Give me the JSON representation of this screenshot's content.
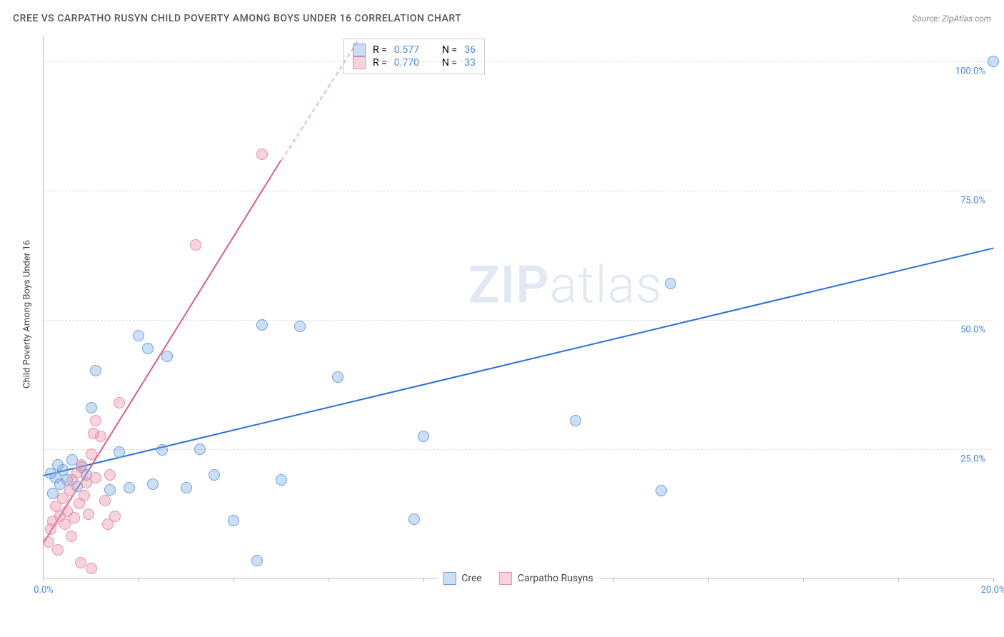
{
  "header": {
    "title": "CREE VS CARPATHO RUSYN CHILD POVERTY AMONG BOYS UNDER 16 CORRELATION CHART",
    "source_prefix": "Source: ",
    "source_name": "ZipAtlas.com"
  },
  "watermark": {
    "zip": "ZIP",
    "atlas": "atlas"
  },
  "chart": {
    "type": "scatter",
    "ylabel": "Child Poverty Among Boys Under 16",
    "xlim": [
      0,
      20
    ],
    "ylim": [
      0,
      105
    ],
    "background_color": "#ffffff",
    "grid_color": "#dddddd",
    "axis_color": "#bbbbbb",
    "tick_label_color": "#4a86e8",
    "y_gridlines": [
      25,
      50,
      75,
      100
    ],
    "y_tick_labels": [
      "25.0%",
      "50.0%",
      "75.0%",
      "100.0%"
    ],
    "x_ticks": [
      0,
      2,
      4,
      6,
      8,
      10,
      12,
      14,
      16,
      18,
      20
    ],
    "x_tick_labels": {
      "0": "0.0%",
      "20": "20.0%"
    },
    "marker_radius": 8,
    "marker_border_width": 1,
    "marker_fill_opacity": 0.35,
    "series": [
      {
        "name": "Cree",
        "color_stroke": "#6da0e0",
        "color_fill": "rgba(109,160,224,0.35)",
        "R": "0.577",
        "N": "36",
        "trend": {
          "x1": 0,
          "y1": 20,
          "x2": 20,
          "y2": 64,
          "width": 2,
          "color": "#2a6fd6"
        },
        "points": [
          [
            0.15,
            20.3
          ],
          [
            0.2,
            16.5
          ],
          [
            0.25,
            19.5
          ],
          [
            0.3,
            22
          ],
          [
            0.35,
            18.2
          ],
          [
            0.4,
            21
          ],
          [
            0.5,
            19
          ],
          [
            0.6,
            23
          ],
          [
            0.7,
            17.8
          ],
          [
            0.8,
            21.5
          ],
          [
            0.9,
            20
          ],
          [
            1.0,
            33
          ],
          [
            1.1,
            40.2
          ],
          [
            1.4,
            17.2
          ],
          [
            1.6,
            24.5
          ],
          [
            1.8,
            17.5
          ],
          [
            2.0,
            47
          ],
          [
            2.2,
            44.5
          ],
          [
            2.3,
            18.2
          ],
          [
            2.5,
            24.8
          ],
          [
            2.6,
            43
          ],
          [
            3.0,
            17.5
          ],
          [
            3.3,
            25
          ],
          [
            3.6,
            20
          ],
          [
            4.0,
            11.2
          ],
          [
            4.5,
            3.5
          ],
          [
            4.6,
            49
          ],
          [
            5.0,
            19
          ],
          [
            5.4,
            48.8
          ],
          [
            6.2,
            39
          ],
          [
            7.8,
            11.5
          ],
          [
            8.0,
            27.5
          ],
          [
            11.2,
            30.5
          ],
          [
            13.0,
            17
          ],
          [
            13.2,
            57
          ],
          [
            20.0,
            100
          ]
        ]
      },
      {
        "name": "Carpatho Rusyns",
        "color_stroke": "#e890a8",
        "color_fill": "rgba(232,144,168,0.4)",
        "R": "0.770",
        "N": "33",
        "trend": {
          "x1": 0,
          "y1": 7,
          "x2": 5.0,
          "y2": 81,
          "width": 2,
          "color": "#e05a84"
        },
        "trend_dash": {
          "x1": 5.0,
          "y1": 81,
          "x2": 6.6,
          "y2": 104,
          "color": "rgba(224,90,132,0.45)"
        },
        "points": [
          [
            0.1,
            7
          ],
          [
            0.15,
            9.5
          ],
          [
            0.2,
            11
          ],
          [
            0.25,
            14
          ],
          [
            0.3,
            5.5
          ],
          [
            0.35,
            12
          ],
          [
            0.4,
            15.5
          ],
          [
            0.45,
            10.5
          ],
          [
            0.5,
            13
          ],
          [
            0.55,
            17
          ],
          [
            0.58,
            8.2
          ],
          [
            0.6,
            19
          ],
          [
            0.65,
            11.8
          ],
          [
            0.7,
            20.5
          ],
          [
            0.75,
            14.5
          ],
          [
            0.78,
            3
          ],
          [
            0.8,
            22
          ],
          [
            0.85,
            16
          ],
          [
            0.9,
            18.5
          ],
          [
            0.95,
            12.5
          ],
          [
            1.0,
            24
          ],
          [
            1.0,
            2
          ],
          [
            1.05,
            28
          ],
          [
            1.1,
            19.5
          ],
          [
            1.1,
            30.5
          ],
          [
            1.2,
            27.5
          ],
          [
            1.3,
            15
          ],
          [
            1.35,
            10.5
          ],
          [
            1.4,
            20
          ],
          [
            1.5,
            12
          ],
          [
            1.6,
            34
          ],
          [
            3.2,
            64.5
          ],
          [
            4.6,
            82
          ]
        ]
      }
    ],
    "legend_top": {
      "r_label": "R =",
      "n_label": "N ="
    },
    "legend_bottom": [
      {
        "swatch_stroke": "#6da0e0",
        "swatch_fill": "rgba(109,160,224,0.35)",
        "label": "Cree"
      },
      {
        "swatch_stroke": "#e890a8",
        "swatch_fill": "rgba(232,144,168,0.4)",
        "label": "Carpatho Rusyns"
      }
    ]
  }
}
